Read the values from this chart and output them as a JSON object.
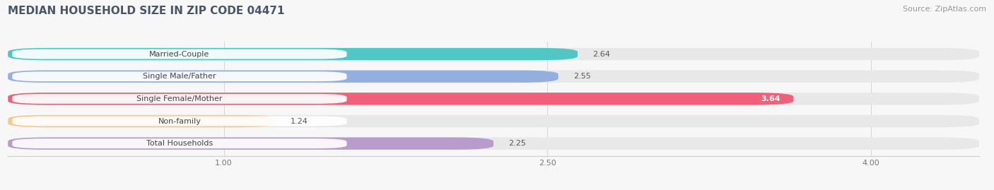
{
  "title": "MEDIAN HOUSEHOLD SIZE IN ZIP CODE 04471",
  "source": "Source: ZipAtlas.com",
  "categories": [
    "Married-Couple",
    "Single Male/Father",
    "Single Female/Mother",
    "Non-family",
    "Total Households"
  ],
  "values": [
    2.64,
    2.55,
    3.64,
    1.24,
    2.25
  ],
  "bar_colors": [
    "#52c5c5",
    "#94aee0",
    "#f0607a",
    "#f8c890",
    "#b89ccc"
  ],
  "xlim_data": [
    0.0,
    4.5
  ],
  "xlim_display": [
    0.0,
    4.5
  ],
  "xtick_positions": [
    1.0,
    2.5,
    4.0
  ],
  "xtick_labels": [
    "1.00",
    "2.50",
    "4.00"
  ],
  "background_color": "#f7f7f7",
  "bar_bg_color": "#e8e8e8",
  "title_fontsize": 11,
  "source_fontsize": 8,
  "value_label_color_default": "#555555",
  "value_label_color_inside": "#ffffff",
  "inside_label_bars": [
    "Single Female/Mother"
  ]
}
